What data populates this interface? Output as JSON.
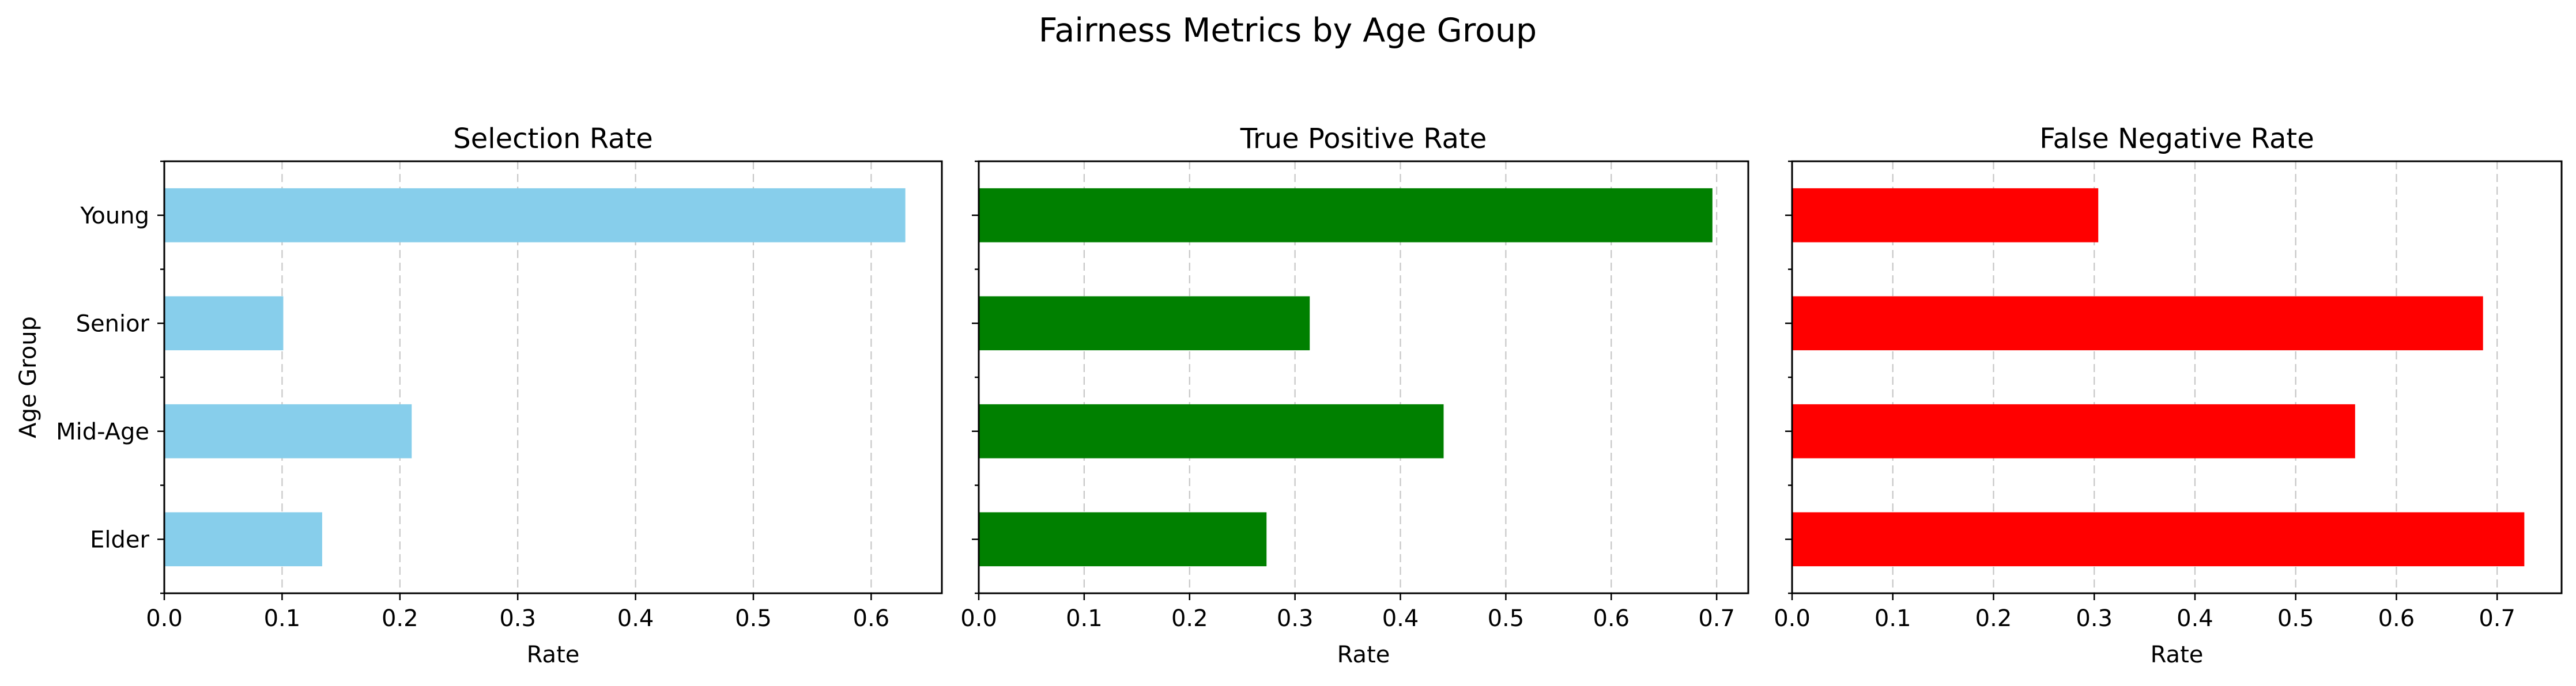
{
  "title": "Fairness Metrics by Age Group",
  "chart_data": [
    {
      "type": "bar",
      "orientation": "horizontal",
      "title": "Selection Rate",
      "categories": [
        "Elder",
        "Mid-Age",
        "Senior",
        "Young"
      ],
      "values": [
        0.134,
        0.21,
        0.101,
        0.629
      ],
      "color": "#87ceeb",
      "xlabel": "Rate",
      "ylabel": "Age Group",
      "xlim": [
        0,
        0.66
      ],
      "xticks": [
        0,
        0.1,
        0.2,
        0.3,
        0.4,
        0.5,
        0.6
      ],
      "xtick_labels": [
        "0.0",
        "0.1",
        "0.2",
        "0.3",
        "0.4",
        "0.5",
        "0.6"
      ],
      "grid": "x-dashed",
      "show_category_labels": true
    },
    {
      "type": "bar",
      "orientation": "horizontal",
      "title": "True Positive Rate",
      "categories": [
        "Elder",
        "Mid-Age",
        "Senior",
        "Young"
      ],
      "values": [
        0.273,
        0.441,
        0.314,
        0.696
      ],
      "color": "#008000",
      "xlabel": "Rate",
      "ylabel": "",
      "xlim": [
        0,
        0.73
      ],
      "xticks": [
        0,
        0.1,
        0.2,
        0.3,
        0.4,
        0.5,
        0.6,
        0.7
      ],
      "xtick_labels": [
        "0.0",
        "0.1",
        "0.2",
        "0.3",
        "0.4",
        "0.5",
        "0.6",
        "0.7"
      ],
      "grid": "x-dashed",
      "show_category_labels": false
    },
    {
      "type": "bar",
      "orientation": "horizontal",
      "title": "False Negative Rate",
      "categories": [
        "Elder",
        "Mid-Age",
        "Senior",
        "Young"
      ],
      "values": [
        0.727,
        0.559,
        0.686,
        0.304
      ],
      "color": "#ff0000",
      "xlabel": "Rate",
      "ylabel": "",
      "xlim": [
        0,
        0.764
      ],
      "xticks": [
        0,
        0.1,
        0.2,
        0.3,
        0.4,
        0.5,
        0.6,
        0.7
      ],
      "xtick_labels": [
        "0.0",
        "0.1",
        "0.2",
        "0.3",
        "0.4",
        "0.5",
        "0.6",
        "0.7"
      ],
      "grid": "x-dashed",
      "show_category_labels": false
    }
  ]
}
